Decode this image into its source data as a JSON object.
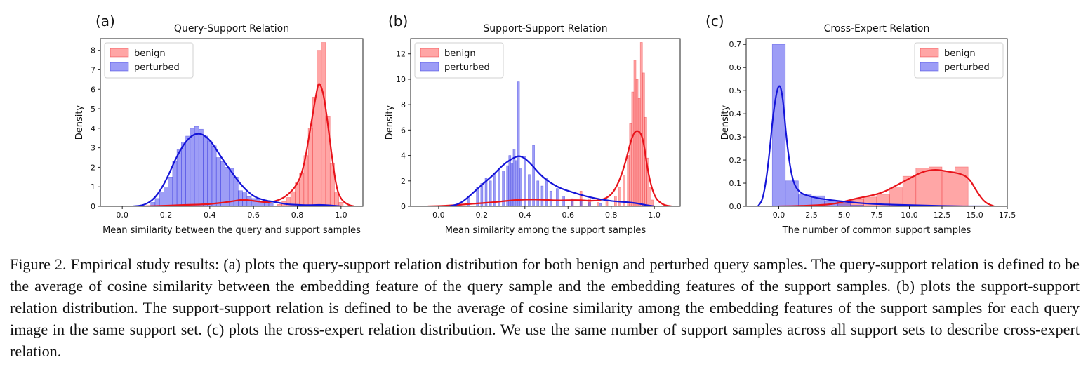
{
  "caption": "Figure 2. Empirical study results: (a) plots the query-support relation distribution for both benign and perturbed query samples. The query-support relation is defined to be the average of cosine similarity between the embedding feature of the query sample and the embedding features of the support samples. (b) plots the support-support relation distribution. The support-support relation is defined to be the average of cosine similarity among the embedding features of the support samples for each query image in the same support set. (c) plots the cross-expert relation distribution. We use the same number of support samples across all support sets to describe cross-expert relation.",
  "colors": {
    "benign_line": "#e8141b",
    "benign_fill": "#ff6b6b",
    "perturbed_line": "#1414d8",
    "perturbed_fill": "#5b5bf0"
  },
  "chart_data": [
    {
      "panel": "(a)",
      "type": "histogram+kde",
      "title": "Query-Support Relation",
      "xlabel": "Mean similarity between the query and support samples",
      "ylabel": "Density",
      "xlim": [
        -0.1,
        1.1
      ],
      "ylim": [
        0,
        8.6
      ],
      "xticks": [
        "0.0",
        "0.2",
        "0.4",
        "0.6",
        "0.8",
        "1.0"
      ],
      "yticks": [
        "0",
        "1",
        "2",
        "3",
        "4",
        "5",
        "6",
        "7",
        "8"
      ],
      "legend": "top-left",
      "series": [
        {
          "name": "benign",
          "bins": [
            [
              0.72,
              0.1
            ],
            [
              0.74,
              0.25
            ],
            [
              0.76,
              0.45
            ],
            [
              0.78,
              0.75
            ],
            [
              0.8,
              1.2
            ],
            [
              0.82,
              1.7
            ],
            [
              0.84,
              2.6
            ],
            [
              0.86,
              4.0
            ],
            [
              0.88,
              5.6
            ],
            [
              0.9,
              8.0
            ],
            [
              0.92,
              8.4
            ],
            [
              0.94,
              4.6
            ],
            [
              0.96,
              2.2
            ],
            [
              0.98,
              0.7
            ],
            [
              1.0,
              0.2
            ]
          ],
          "bin_width": 0.02,
          "kde": [
            [
              0.1,
              0.0
            ],
            [
              0.2,
              0.03
            ],
            [
              0.3,
              0.08
            ],
            [
              0.4,
              0.1
            ],
            [
              0.5,
              0.25
            ],
            [
              0.55,
              0.35
            ],
            [
              0.6,
              0.28
            ],
            [
              0.65,
              0.2
            ],
            [
              0.7,
              0.25
            ],
            [
              0.75,
              0.5
            ],
            [
              0.8,
              1.1
            ],
            [
              0.83,
              2.0
            ],
            [
              0.86,
              4.0
            ],
            [
              0.89,
              6.0
            ],
            [
              0.9,
              6.4
            ],
            [
              0.92,
              5.8
            ],
            [
              0.94,
              4.2
            ],
            [
              0.96,
              2.4
            ],
            [
              0.98,
              0.9
            ],
            [
              1.0,
              0.35
            ],
            [
              1.03,
              0.08
            ],
            [
              1.06,
              0.0
            ]
          ]
        },
        {
          "name": "perturbed",
          "bins": [
            [
              0.14,
              0.2
            ],
            [
              0.16,
              0.4
            ],
            [
              0.18,
              0.7
            ],
            [
              0.2,
              0.95
            ],
            [
              0.22,
              1.5
            ],
            [
              0.24,
              2.3
            ],
            [
              0.26,
              2.9
            ],
            [
              0.28,
              3.3
            ],
            [
              0.3,
              3.6
            ],
            [
              0.32,
              4.0
            ],
            [
              0.34,
              4.1
            ],
            [
              0.36,
              3.95
            ],
            [
              0.38,
              3.6
            ],
            [
              0.4,
              3.35
            ],
            [
              0.42,
              3.1
            ],
            [
              0.44,
              2.5
            ],
            [
              0.46,
              2.3
            ],
            [
              0.48,
              2.0
            ],
            [
              0.5,
              1.95
            ],
            [
              0.52,
              1.5
            ],
            [
              0.54,
              0.8
            ],
            [
              0.56,
              0.7
            ],
            [
              0.58,
              0.5
            ],
            [
              0.6,
              0.4
            ],
            [
              0.62,
              0.35
            ],
            [
              0.64,
              0.25
            ],
            [
              0.66,
              0.2
            ],
            [
              0.68,
              0.15
            ]
          ],
          "bin_width": 0.02,
          "kde": [
            [
              0.05,
              0.0
            ],
            [
              0.1,
              0.05
            ],
            [
              0.15,
              0.4
            ],
            [
              0.2,
              1.3
            ],
            [
              0.25,
              2.6
            ],
            [
              0.3,
              3.5
            ],
            [
              0.35,
              3.8
            ],
            [
              0.4,
              3.45
            ],
            [
              0.45,
              2.55
            ],
            [
              0.5,
              1.75
            ],
            [
              0.55,
              1.0
            ],
            [
              0.6,
              0.5
            ],
            [
              0.65,
              0.3
            ],
            [
              0.7,
              0.22
            ],
            [
              0.75,
              0.1
            ],
            [
              0.8,
              0.08
            ],
            [
              0.85,
              0.05
            ],
            [
              0.9,
              0.08
            ],
            [
              0.95,
              0.05
            ],
            [
              1.0,
              0.0
            ]
          ]
        }
      ]
    },
    {
      "panel": "(b)",
      "type": "histogram+kde",
      "title": "Support-Support Relation",
      "xlabel": "Mean similarity among the support samples",
      "ylabel": "Density",
      "xlim": [
        -0.13,
        1.12
      ],
      "ylim": [
        0,
        13.2
      ],
      "xticks": [
        "0.0",
        "0.2",
        "0.4",
        "0.6",
        "0.8",
        "1.0"
      ],
      "yticks": [
        "0",
        "2",
        "4",
        "6",
        "8",
        "10",
        "12"
      ],
      "legend": "top-left",
      "series": [
        {
          "name": "benign",
          "bins": [
            [
              0.62,
              0.4
            ],
            [
              0.66,
              1.2
            ],
            [
              0.7,
              0.6
            ],
            [
              0.74,
              0.3
            ],
            [
              0.78,
              0.5
            ],
            [
              0.82,
              0.8
            ],
            [
              0.84,
              1.5
            ],
            [
              0.86,
              2.4
            ],
            [
              0.88,
              4.0
            ],
            [
              0.89,
              6.5
            ],
            [
              0.9,
              9.0
            ],
            [
              0.91,
              11.5
            ],
            [
              0.92,
              10.0
            ],
            [
              0.93,
              8.5
            ],
            [
              0.94,
              12.9
            ],
            [
              0.95,
              10.5
            ],
            [
              0.96,
              7.0
            ],
            [
              0.97,
              3.8
            ],
            [
              0.98,
              1.5
            ],
            [
              0.99,
              0.5
            ]
          ],
          "bin_width": 0.01,
          "kde": [
            [
              -0.05,
              0.0
            ],
            [
              0.05,
              0.05
            ],
            [
              0.15,
              0.2
            ],
            [
              0.25,
              0.3
            ],
            [
              0.35,
              0.5
            ],
            [
              0.45,
              0.55
            ],
            [
              0.55,
              0.45
            ],
            [
              0.65,
              0.5
            ],
            [
              0.72,
              0.4
            ],
            [
              0.78,
              0.6
            ],
            [
              0.82,
              1.3
            ],
            [
              0.86,
              3.0
            ],
            [
              0.9,
              5.8
            ],
            [
              0.93,
              6.0
            ],
            [
              0.95,
              5.2
            ],
            [
              0.97,
              2.7
            ],
            [
              1.0,
              0.7
            ],
            [
              1.04,
              0.1
            ],
            [
              1.08,
              0.0
            ]
          ]
        },
        {
          "name": "perturbed",
          "bins": [
            [
              0.1,
              0.3
            ],
            [
              0.14,
              0.8
            ],
            [
              0.18,
              1.5
            ],
            [
              0.2,
              1.8
            ],
            [
              0.22,
              2.2
            ],
            [
              0.24,
              2.0
            ],
            [
              0.26,
              2.6
            ],
            [
              0.28,
              3.0
            ],
            [
              0.3,
              2.8
            ],
            [
              0.32,
              3.2
            ],
            [
              0.33,
              4.0
            ],
            [
              0.34,
              3.4
            ],
            [
              0.35,
              4.5
            ],
            [
              0.36,
              3.6
            ],
            [
              0.37,
              9.8
            ],
            [
              0.38,
              3.0
            ],
            [
              0.4,
              3.9
            ],
            [
              0.42,
              2.5
            ],
            [
              0.44,
              4.8
            ],
            [
              0.46,
              2.0
            ],
            [
              0.48,
              1.6
            ],
            [
              0.5,
              2.2
            ],
            [
              0.52,
              1.2
            ],
            [
              0.55,
              1.4
            ],
            [
              0.58,
              0.8
            ],
            [
              0.62,
              0.6
            ],
            [
              0.66,
              0.4
            ],
            [
              0.7,
              0.3
            ],
            [
              0.75,
              0.2
            ]
          ],
          "bin_width": 0.01,
          "kde": [
            [
              0.05,
              0.0
            ],
            [
              0.1,
              0.2
            ],
            [
              0.15,
              0.9
            ],
            [
              0.2,
              1.7
            ],
            [
              0.25,
              2.4
            ],
            [
              0.3,
              3.3
            ],
            [
              0.35,
              3.85
            ],
            [
              0.38,
              4.0
            ],
            [
              0.42,
              3.5
            ],
            [
              0.48,
              2.3
            ],
            [
              0.55,
              1.5
            ],
            [
              0.62,
              1.1
            ],
            [
              0.7,
              0.7
            ],
            [
              0.8,
              0.4
            ],
            [
              0.9,
              0.3
            ],
            [
              0.96,
              0.1
            ],
            [
              1.0,
              0.0
            ]
          ]
        }
      ]
    },
    {
      "panel": "(c)",
      "type": "histogram+kde",
      "title": "Cross-Expert Relation",
      "xlabel": "The number of common support samples",
      "ylabel": "Density",
      "xlim": [
        -2.5,
        17.5
      ],
      "ylim": [
        0,
        0.725
      ],
      "xticks": [
        "0.0",
        "2.5",
        "5.0",
        "7.5",
        "10.0",
        "12.5",
        "15.0",
        "17.5"
      ],
      "yticks": [
        "0.0",
        "0.1",
        "0.2",
        "0.3",
        "0.4",
        "0.5",
        "0.6",
        "0.7"
      ],
      "legend": "top-right",
      "series": [
        {
          "name": "benign",
          "bins": [
            [
              5.0,
              0.02
            ],
            [
              6.0,
              0.03
            ],
            [
              7.0,
              0.04
            ],
            [
              8.0,
              0.05
            ],
            [
              9.0,
              0.08
            ],
            [
              10.0,
              0.13
            ],
            [
              11.0,
              0.165
            ],
            [
              12.0,
              0.17
            ],
            [
              13.0,
              0.15
            ],
            [
              14.0,
              0.17
            ],
            [
              15.0,
              0.0
            ]
          ],
          "bin_width": 1.0,
          "kde": [
            [
              0.0,
              0.0
            ],
            [
              2.0,
              0.002
            ],
            [
              4.0,
              0.008
            ],
            [
              5.0,
              0.02
            ],
            [
              6.0,
              0.035
            ],
            [
              7.0,
              0.045
            ],
            [
              8.0,
              0.06
            ],
            [
              9.0,
              0.09
            ],
            [
              10.0,
              0.12
            ],
            [
              11.0,
              0.15
            ],
            [
              12.0,
              0.16
            ],
            [
              13.0,
              0.15
            ],
            [
              14.0,
              0.14
            ],
            [
              14.6,
              0.12
            ],
            [
              15.2,
              0.06
            ],
            [
              15.8,
              0.015
            ],
            [
              16.5,
              0.0
            ]
          ]
        },
        {
          "name": "perturbed",
          "bins": [
            [
              0.0,
              0.7
            ],
            [
              1.0,
              0.11
            ],
            [
              2.0,
              0.05
            ],
            [
              3.0,
              0.045
            ],
            [
              4.0,
              0.02
            ],
            [
              5.0,
              0.01
            ],
            [
              6.0,
              0.005
            ]
          ],
          "bin_width": 1.0,
          "kde": [
            [
              -1.6,
              0.0
            ],
            [
              -1.2,
              0.03
            ],
            [
              -0.8,
              0.18
            ],
            [
              -0.4,
              0.42
            ],
            [
              0.0,
              0.54
            ],
            [
              0.3,
              0.48
            ],
            [
              0.6,
              0.28
            ],
            [
              1.0,
              0.12
            ],
            [
              1.5,
              0.06
            ],
            [
              2.5,
              0.04
            ],
            [
              3.5,
              0.03
            ],
            [
              5.0,
              0.02
            ],
            [
              7.0,
              0.01
            ],
            [
              10.0,
              0.005
            ],
            [
              14.0,
              0.0
            ],
            [
              16.0,
              0.0
            ]
          ]
        }
      ]
    }
  ]
}
